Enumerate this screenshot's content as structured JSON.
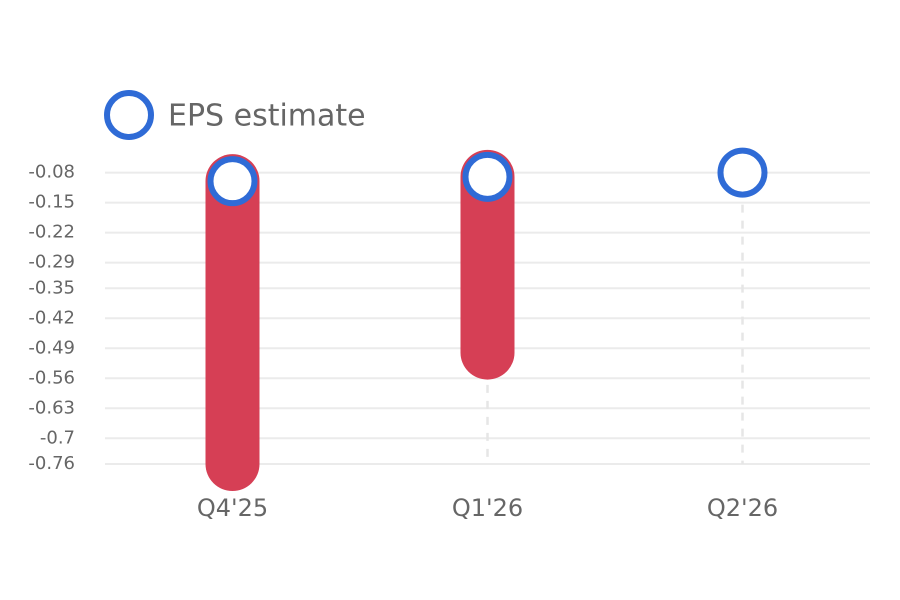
{
  "chart_data": {
    "type": "eps",
    "categories": [
      "Q4'25",
      "Q1'26",
      "Q2'26"
    ],
    "series": [
      {
        "name": "EPS estimate",
        "color": "#2f6bd6",
        "values": [
          -0.1,
          -0.09,
          -0.08
        ]
      },
      {
        "color": "#d63f55",
        "values": [
          -0.76,
          -0.5,
          null
        ]
      }
    ],
    "ylim": [
      -0.76,
      -0.06
    ],
    "yticks": [
      -0.08,
      -0.15,
      -0.22,
      -0.29,
      -0.35,
      -0.42,
      -0.49,
      -0.56,
      -0.63,
      -0.7,
      -0.76
    ],
    "grid": true,
    "legend": "top-left"
  }
}
